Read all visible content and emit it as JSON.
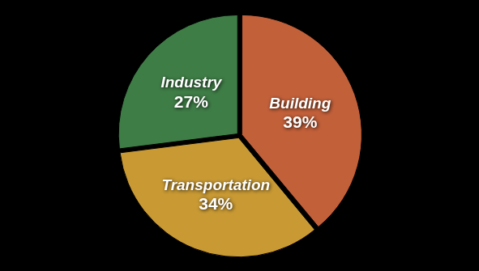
{
  "chart_data": {
    "type": "pie",
    "categories": [
      "Building",
      "Transportation",
      "Industry"
    ],
    "values": [
      39,
      34,
      27
    ],
    "value_labels": [
      "39%",
      "34%",
      "27%"
    ],
    "colors": [
      "#c2603a",
      "#c99a34",
      "#3f7d47"
    ],
    "data_labels": true
  }
}
